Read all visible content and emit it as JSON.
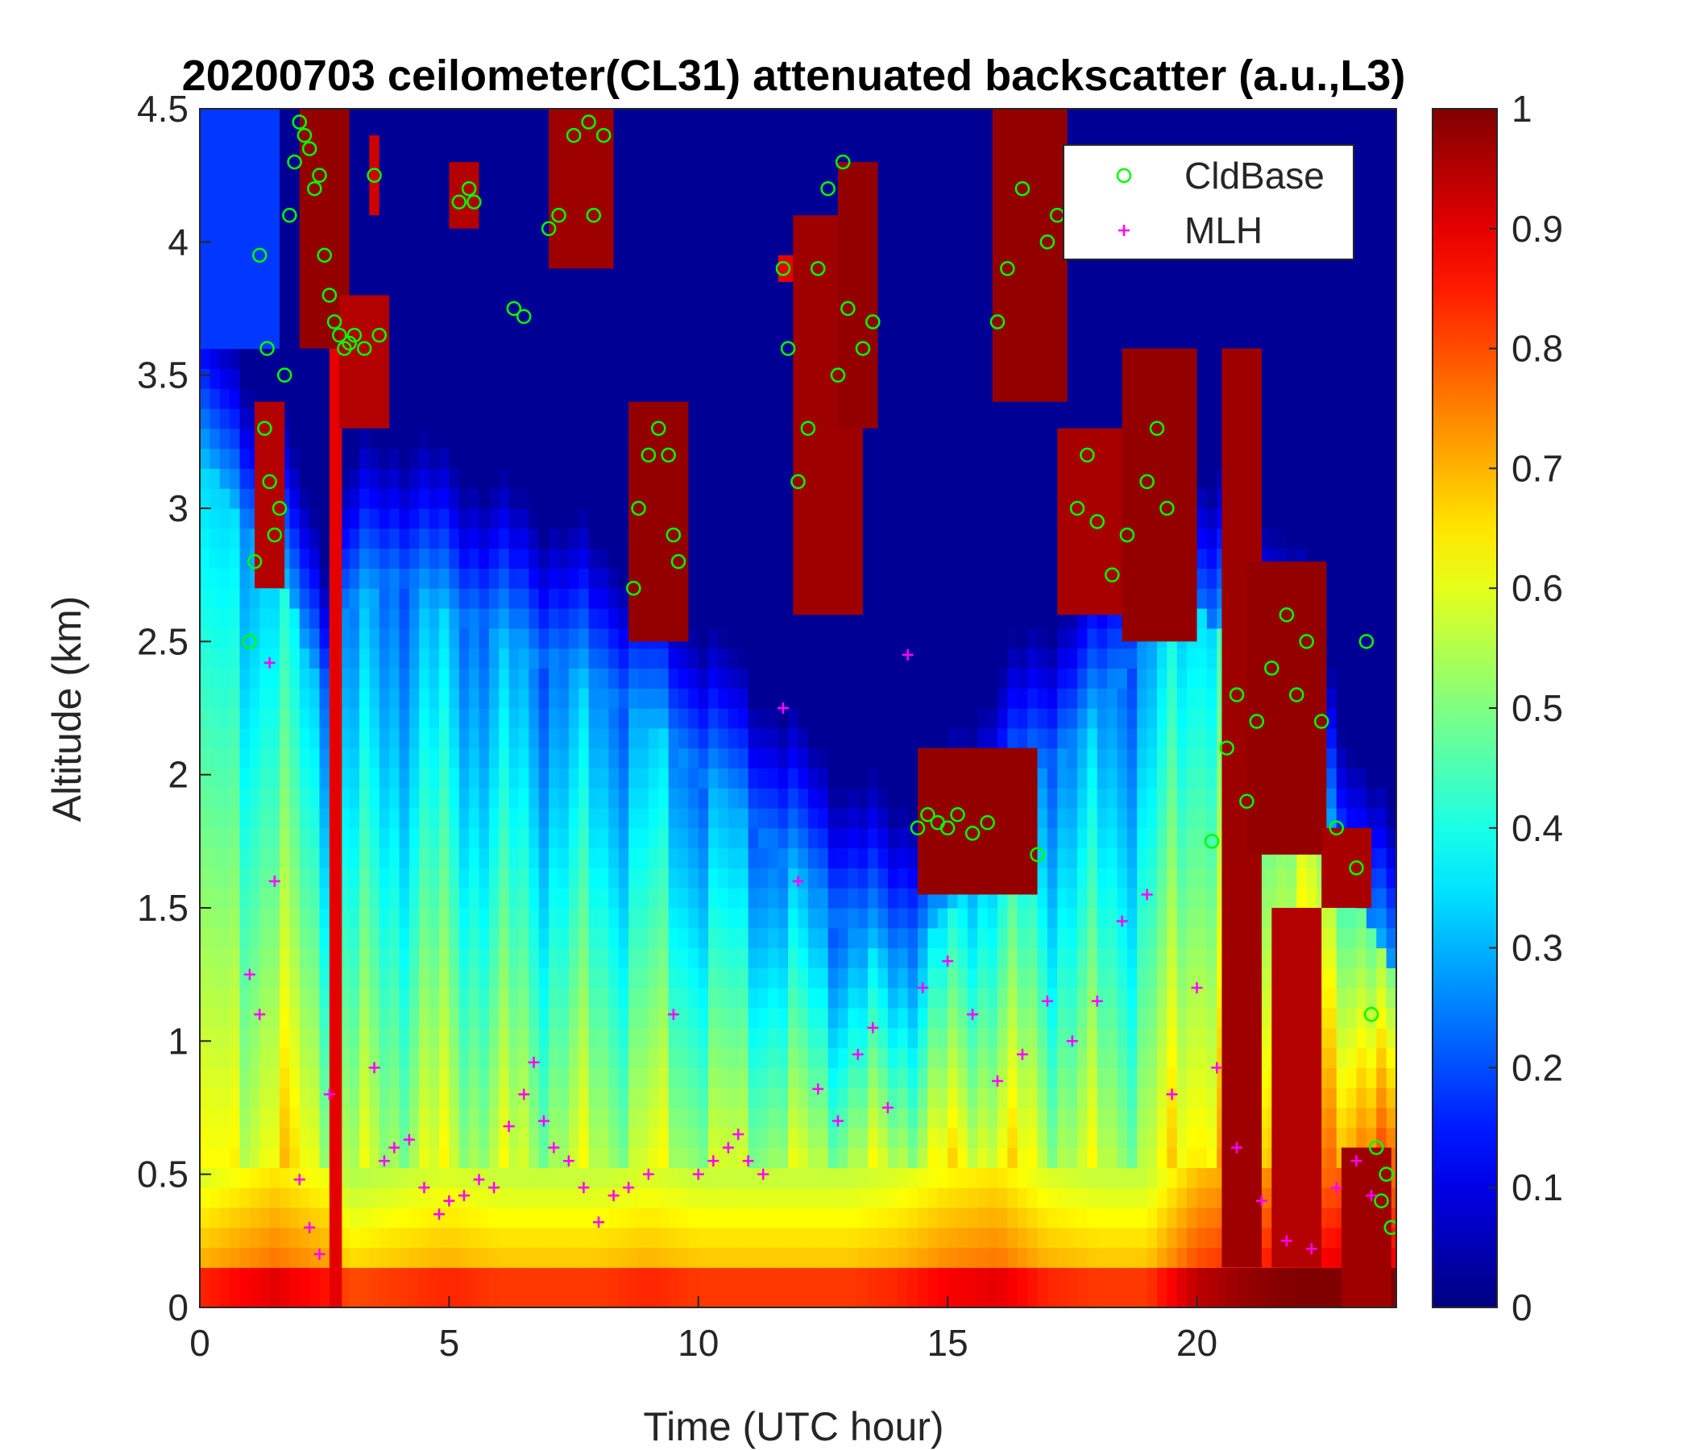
{
  "chart_data": {
    "type": "heatmap",
    "title": "20200703 ceilometer(CL31) attenuated backscatter (a.u.,L3)",
    "xlabel": "Time (UTC hour)",
    "ylabel": "Altitude (km)",
    "xlim": [
      0,
      24
    ],
    "ylim": [
      0,
      4.5
    ],
    "xticks": [
      0,
      5,
      10,
      15,
      20
    ],
    "yticks": [
      0,
      0.5,
      1,
      1.5,
      2,
      2.5,
      3,
      3.5,
      4,
      4.5
    ],
    "colorbar": {
      "colormap": "jet",
      "clim": [
        0,
        1
      ],
      "ticks": [
        0,
        0.1,
        0.2,
        0.3,
        0.4,
        0.5,
        0.6,
        0.7,
        0.8,
        0.9,
        1
      ]
    },
    "legend": {
      "position": "top-right",
      "entries": [
        {
          "label": "CldBase",
          "marker": "circle",
          "color": "#00ff00"
        },
        {
          "label": "MLH",
          "marker": "plus",
          "color": "#ff00ff"
        }
      ]
    },
    "background_profile": {
      "heights_km": [
        0,
        0.1,
        0.3,
        0.5,
        0.8,
        1.0,
        1.5,
        2.0,
        2.5,
        3.0,
        3.5,
        4.0,
        4.5
      ],
      "times_h": [
        0,
        1.5,
        2.5,
        3,
        4,
        5,
        6,
        7,
        8,
        9,
        10,
        11,
        12,
        13,
        14,
        15,
        16,
        17,
        18,
        19,
        20,
        21,
        22,
        23,
        24
      ],
      "aerosol_top_km": [
        3.2,
        2.8,
        2.3,
        2.6,
        2.7,
        2.6,
        2.5,
        2.4,
        2.3,
        2.2,
        2.0,
        1.8,
        1.6,
        1.4,
        1.3,
        1.5,
        1.8,
        2.0,
        2.2,
        2.5,
        2.6,
        2.5,
        2.3,
        1.6,
        1.2
      ],
      "surface_strength": [
        0.72,
        0.78,
        0.74,
        0.68,
        0.7,
        0.72,
        0.7,
        0.7,
        0.7,
        0.72,
        0.7,
        0.7,
        0.7,
        0.7,
        0.72,
        0.76,
        0.78,
        0.72,
        0.7,
        0.7,
        0.82,
        0.86,
        0.88,
        0.92,
        0.9
      ]
    },
    "cloud_layers": [
      {
        "t0": 1.1,
        "t1": 1.7,
        "z0": 2.7,
        "z1": 3.4,
        "value": 0.95
      },
      {
        "t0": 2.0,
        "t1": 3.0,
        "z0": 3.6,
        "z1": 4.5,
        "value": 0.98
      },
      {
        "t0": 2.6,
        "t1": 2.85,
        "z0": 0,
        "z1": 3.6,
        "value": 0.9
      },
      {
        "t0": 2.8,
        "t1": 3.8,
        "z0": 3.3,
        "z1": 3.8,
        "value": 0.95
      },
      {
        "t0": 3.4,
        "t1": 3.6,
        "z0": 4.1,
        "z1": 4.4,
        "value": 0.92
      },
      {
        "t0": 5.0,
        "t1": 5.6,
        "z0": 4.05,
        "z1": 4.3,
        "value": 0.95
      },
      {
        "t0": 7.0,
        "t1": 8.3,
        "z0": 3.9,
        "z1": 4.5,
        "value": 0.97
      },
      {
        "t0": 8.6,
        "t1": 9.8,
        "z0": 2.5,
        "z1": 3.4,
        "value": 0.98
      },
      {
        "t0": 11.6,
        "t1": 11.9,
        "z0": 3.85,
        "z1": 3.95,
        "value": 0.9
      },
      {
        "t0": 11.9,
        "t1": 13.3,
        "z0": 2.6,
        "z1": 4.1,
        "value": 0.97
      },
      {
        "t0": 12.8,
        "t1": 13.6,
        "z0": 3.3,
        "z1": 4.3,
        "value": 0.98
      },
      {
        "t0": 14.4,
        "t1": 16.8,
        "z0": 1.55,
        "z1": 2.1,
        "value": 0.98
      },
      {
        "t0": 15.9,
        "t1": 17.4,
        "z0": 3.4,
        "z1": 4.5,
        "value": 0.98
      },
      {
        "t0": 17.2,
        "t1": 18.6,
        "z0": 2.6,
        "z1": 3.3,
        "value": 0.96
      },
      {
        "t0": 18.5,
        "t1": 20.0,
        "z0": 2.5,
        "z1": 3.6,
        "value": 0.98
      },
      {
        "t0": 20.5,
        "t1": 21.3,
        "z0": 0.15,
        "z1": 3.6,
        "value": 0.97
      },
      {
        "t0": 21.0,
        "t1": 22.6,
        "z0": 1.7,
        "z1": 2.8,
        "value": 0.98
      },
      {
        "t0": 21.5,
        "t1": 22.5,
        "z0": 0.15,
        "z1": 1.5,
        "value": 0.95
      },
      {
        "t0": 22.5,
        "t1": 23.5,
        "z0": 1.5,
        "z1": 1.8,
        "value": 0.96
      },
      {
        "t0": 22.9,
        "t1": 23.9,
        "z0": 0,
        "z1": 0.6,
        "value": 0.97
      }
    ],
    "series": [
      {
        "name": "CldBase",
        "marker": "circle",
        "color": "#00ff00",
        "x": [
          1.0,
          1.1,
          1.2,
          1.3,
          1.35,
          1.4,
          1.5,
          1.6,
          1.7,
          1.8,
          1.9,
          2.0,
          2.1,
          2.2,
          2.3,
          2.4,
          2.5,
          2.6,
          2.7,
          2.8,
          2.9,
          3.0,
          3.1,
          3.3,
          3.5,
          3.6,
          5.2,
          5.4,
          5.5,
          6.3,
          6.5,
          7.0,
          7.2,
          7.5,
          7.8,
          7.9,
          8.1,
          8.7,
          8.8,
          9.0,
          9.2,
          9.4,
          9.5,
          9.6,
          11.7,
          11.8,
          12.0,
          12.2,
          12.4,
          12.6,
          12.8,
          12.9,
          13.0,
          13.3,
          13.5,
          14.4,
          14.6,
          14.8,
          15.0,
          15.2,
          15.5,
          15.8,
          16.0,
          16.2,
          16.5,
          16.8,
          17.0,
          17.2,
          17.6,
          17.8,
          18.0,
          18.3,
          18.6,
          19.0,
          19.2,
          19.4,
          20.3,
          20.6,
          20.8,
          21.0,
          21.2,
          21.5,
          21.8,
          22.0,
          22.2,
          22.5,
          22.8,
          23.2,
          23.4,
          23.5,
          23.6,
          23.7,
          23.8,
          23.9
        ],
        "y": [
          2.5,
          2.8,
          3.95,
          3.3,
          3.6,
          3.1,
          2.9,
          3.0,
          3.5,
          4.1,
          4.3,
          4.45,
          4.4,
          4.35,
          4.2,
          4.25,
          3.95,
          3.8,
          3.7,
          3.65,
          3.6,
          3.62,
          3.65,
          3.6,
          4.25,
          3.65,
          4.15,
          4.2,
          4.15,
          3.75,
          3.72,
          4.05,
          4.1,
          4.4,
          4.45,
          4.1,
          4.4,
          2.7,
          3.0,
          3.2,
          3.3,
          3.2,
          2.9,
          2.8,
          3.9,
          3.6,
          3.1,
          3.3,
          3.9,
          4.2,
          3.5,
          4.3,
          3.75,
          3.6,
          3.7,
          1.8,
          1.85,
          1.82,
          1.8,
          1.85,
          1.78,
          1.82,
          3.7,
          3.9,
          4.2,
          1.7,
          4.0,
          4.1,
          3.0,
          3.2,
          2.95,
          2.75,
          2.9,
          3.1,
          3.3,
          3.0,
          1.75,
          2.1,
          2.3,
          1.9,
          2.2,
          2.4,
          2.6,
          2.3,
          2.5,
          2.2,
          1.8,
          1.65,
          2.5,
          1.1,
          0.6,
          0.4,
          0.5,
          0.3
        ]
      },
      {
        "name": "MLH",
        "marker": "plus",
        "color": "#ff00ff",
        "x": [
          1.0,
          1.2,
          1.4,
          1.5,
          2.0,
          2.2,
          2.4,
          2.6,
          3.5,
          3.7,
          3.9,
          4.2,
          4.5,
          4.8,
          5.0,
          5.3,
          5.6,
          5.9,
          6.2,
          6.5,
          6.7,
          6.9,
          7.1,
          7.4,
          7.7,
          8.0,
          8.3,
          8.6,
          9.0,
          9.5,
          10.0,
          10.3,
          10.6,
          10.8,
          11.0,
          11.3,
          11.7,
          12.0,
          12.4,
          12.8,
          13.2,
          13.5,
          13.8,
          14.2,
          14.5,
          15.0,
          15.5,
          16.0,
          16.5,
          17.0,
          17.5,
          18.0,
          18.5,
          19.0,
          19.5,
          20.0,
          20.4,
          20.8,
          21.3,
          21.8,
          22.3,
          22.8,
          23.2,
          23.5
        ],
        "y": [
          1.25,
          1.1,
          2.42,
          1.6,
          0.48,
          0.3,
          0.2,
          0.8,
          0.9,
          0.55,
          0.6,
          0.63,
          0.45,
          0.35,
          0.4,
          0.42,
          0.48,
          0.45,
          0.68,
          0.8,
          0.92,
          0.7,
          0.6,
          0.55,
          0.45,
          0.32,
          0.42,
          0.45,
          0.5,
          1.1,
          0.5,
          0.55,
          0.6,
          0.65,
          0.55,
          0.5,
          2.25,
          1.6,
          0.82,
          0.7,
          0.95,
          1.05,
          0.75,
          2.45,
          1.2,
          1.3,
          1.1,
          0.85,
          0.95,
          1.15,
          1.0,
          1.15,
          1.45,
          1.55,
          0.8,
          1.2,
          0.9,
          0.6,
          0.4,
          0.25,
          0.22,
          0.45,
          0.55,
          0.42
        ]
      }
    ]
  }
}
